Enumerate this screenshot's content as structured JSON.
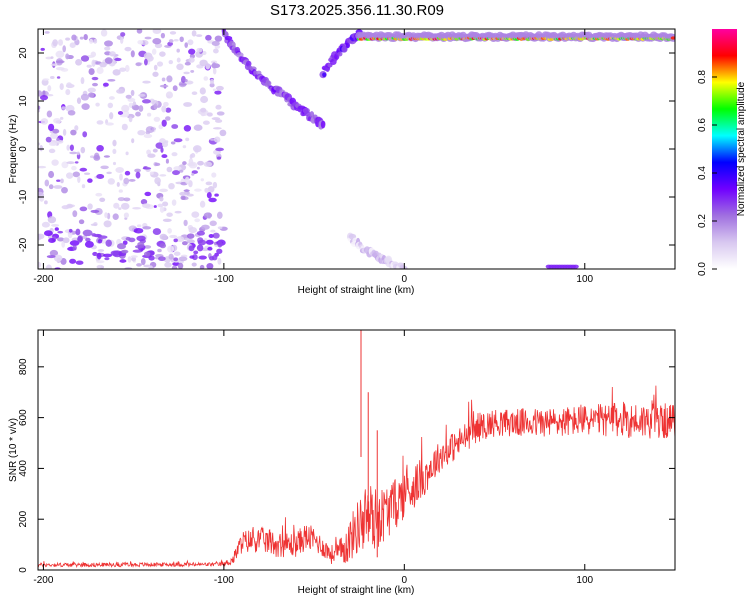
{
  "title": "S173.2025.356.11.30.R09",
  "chart_data": [
    {
      "type": "heatmap",
      "xlabel": "Height of straight line (km)",
      "ylabel": "Frequency (Hz)",
      "xlim": [
        -203,
        150
      ],
      "ylim": [
        -25,
        25
      ],
      "x_ticks": [
        -200,
        -100,
        0,
        100
      ],
      "x_tick_labels": [
        "-200",
        "-100",
        "0",
        "100"
      ],
      "y_ticks": [
        -20,
        -10,
        0,
        10,
        20
      ],
      "y_tick_labels": [
        "-20",
        "-10",
        "0",
        "10",
        "20"
      ],
      "colorbar": {
        "label": "Normalized spectral amplitude",
        "range": [
          0,
          1
        ],
        "ticks": [
          0,
          0.2,
          0.4,
          0.6,
          0.8
        ],
        "tick_labels": [
          "0.0",
          "0.2",
          "0.4",
          "0.6",
          "0.8"
        ],
        "colors": [
          "#ffffff",
          "#d8c8f0",
          "#a070e0",
          "#7000ff",
          "#0000ff",
          "#00ffff",
          "#00ff00",
          "#ffff00",
          "#ff0000",
          "#ff00a0"
        ]
      },
      "features": [
        {
          "name": "broadband noise region",
          "x_range": [
            -203,
            -100
          ],
          "y_range": [
            -25,
            25
          ],
          "amplitude": 0.1
        },
        {
          "name": "low-frequency band",
          "x_range": [
            -200,
            -100
          ],
          "y_range": [
            -23,
            -17
          ],
          "amplitude": 0.15
        },
        {
          "name": "descending chirp arc",
          "x_range": [
            -100,
            -45
          ],
          "y_from": 25,
          "y_to": 5,
          "amplitude": 0.25
        },
        {
          "name": "rising arc",
          "x_range": [
            -45,
            -25
          ],
          "y_from": 15,
          "y_to": 24,
          "amplitude": 0.3
        },
        {
          "name": "steady tone near 23 Hz",
          "x_range": [
            -25,
            150
          ],
          "y": 23,
          "amplitude": 0.9
        },
        {
          "name": "weak lower track",
          "x_range": [
            -30,
            0
          ],
          "y_from": -18,
          "y_to": -25,
          "amplitude": 0.08
        },
        {
          "name": "bottom-edge tone",
          "x_range": [
            80,
            95
          ],
          "y": -24.5,
          "amplitude": 0.3
        }
      ]
    },
    {
      "type": "line",
      "xlabel": "Height of straight line (km)",
      "ylabel": "SNR (10 * v/v)",
      "xlim": [
        -203,
        150
      ],
      "ylim": [
        0,
        945
      ],
      "x_ticks": [
        -200,
        -100,
        0,
        100
      ],
      "x_tick_labels": [
        "-200",
        "-100",
        "0",
        "100"
      ],
      "y_ticks": [
        0,
        200,
        400,
        600,
        800
      ],
      "y_tick_labels": [
        "0",
        "200",
        "400",
        "600",
        "800"
      ],
      "series": [
        {
          "name": "SNR",
          "color": "#ee3333",
          "envelope_x": [
            -203,
            -100,
            -95,
            -90,
            -80,
            -70,
            -60,
            -55,
            -50,
            -45,
            -40,
            -35,
            -30,
            -25,
            -20,
            -15,
            -10,
            -5,
            0,
            5,
            10,
            20,
            30,
            40,
            50,
            60,
            80,
            100,
            120,
            150
          ],
          "envelope_mean": [
            20,
            22,
            40,
            110,
            120,
            100,
            100,
            130,
            120,
            90,
            60,
            70,
            120,
            180,
            210,
            200,
            230,
            260,
            300,
            330,
            360,
            450,
            500,
            560,
            580,
            580,
            580,
            590,
            590,
            585
          ],
          "envelope_noise": [
            8,
            8,
            20,
            45,
            50,
            50,
            50,
            55,
            50,
            40,
            40,
            60,
            90,
            110,
            150,
            120,
            110,
            100,
            100,
            90,
            80,
            60,
            60,
            60,
            55,
            55,
            60,
            60,
            70,
            70
          ],
          "spikes": [
            {
              "x": -24,
              "y": 945
            },
            {
              "x": -20,
              "y": 700
            },
            {
              "x": -15,
              "y": 550
            }
          ]
        }
      ]
    }
  ]
}
